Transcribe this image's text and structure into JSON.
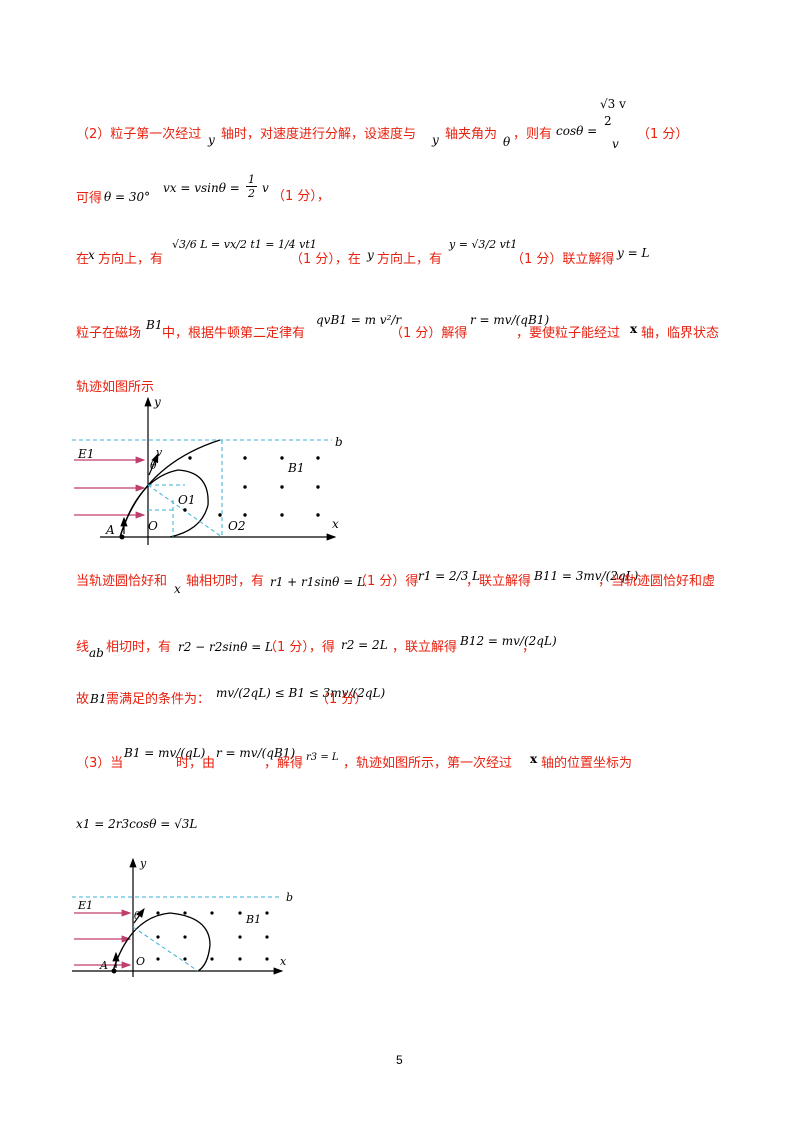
{
  "line1": {
    "text_a": "（2）粒子第一次经过",
    "text_b": "轴时，对速度进行分解，设速度与",
    "text_c": "轴夹角为",
    "text_d": "，则有",
    "text_e": "（1 分）",
    "var_y": "y",
    "var_theta": "θ",
    "cos_lhs": "cosθ =",
    "cos_num": "√3 v",
    "cos_num_den": "2",
    "cos_den": "v"
  },
  "line2": {
    "text_a": "可得",
    "theta_eq": "θ = 30°",
    "vx_eq": "vx = vsinθ = ",
    "half": "1",
    "two": "2",
    "v": "v",
    "text_b": "（1 分），"
  },
  "line3": {
    "text_a": "在",
    "x": "x",
    "text_b": "方向上，有",
    "eq1": "√3/6 L = vx/2 t1 = 1/4 vt1",
    "text_c": "（1 分），在",
    "y": "y",
    "text_d": "方向上，有",
    "eq2": "y = √3/2 vt1",
    "text_e": "（1 分）联立解得",
    "eq3": "y = L"
  },
  "line4": {
    "text_a": "粒子在磁场",
    "B1": "B1",
    "text_b": "中，根据牛顿第二定律有",
    "eq1": "qvB1 = m v²/r",
    "text_c": "（1 分）解得",
    "eq2": "r = mv/(qB1)",
    "text_d": "，要使粒子能经过",
    "x": "x",
    "text_e": "轴，临界状态"
  },
  "line5": {
    "text": "轨迹如图所示"
  },
  "figure1": {
    "label_y": "y",
    "label_x": "x",
    "label_b": "b",
    "label_E1": "E1",
    "label_v": "v",
    "label_theta": "θ",
    "label_B1": "B1",
    "label_O1": "O1",
    "label_O2": "O2",
    "label_O": "O",
    "label_A": "A"
  },
  "line6": {
    "text_a": "当轨迹圆恰好和",
    "x": "x",
    "text_b": "轴相切时，有",
    "eq1": "r1 + r1sinθ = L",
    "text_c": "（1 分）得",
    "eq2": "r1 = 2/3 L",
    "text_d": "，联立解得",
    "eq3": "B11 = 3mv/(2qL)",
    "text_e": "，当轨迹圆恰好和虚"
  },
  "line7": {
    "text_a": "线",
    "ab": "ab",
    "text_b": "相切时，有",
    "eq1": "r2 − r2sinθ = L",
    "text_c": "（1 分），得",
    "eq2": "r2 = 2L",
    "text_d": "，联立解得",
    "eq3": "B12 = mv/(2qL)",
    "text_e": "，"
  },
  "line8": {
    "text_a": "故",
    "B1": "B1",
    "text_b": "需满足的条件为：",
    "eq": "mv/(2qL) ≤ B1 ≤ 3mv/(2qL)",
    "text_c": "（1 分）"
  },
  "line9": {
    "text_a": "（3）当",
    "eq1": "B1 = mv/(qL)",
    "text_b": "时，由",
    "eq2": "r = mv/(qB1)",
    "text_c": "，解得",
    "eq3": "r3 = L",
    "text_d": "，轨迹如图所示，第一次经过",
    "x": "x",
    "text_e": "轴的位置坐标为"
  },
  "line10": {
    "eq": "x1 = 2r3cosθ = √3L"
  },
  "figure2": {
    "label_y": "y",
    "label_x": "x",
    "label_b": "b",
    "label_E1": "E1",
    "label_theta": "θ",
    "label_B1": "B1",
    "label_O": "O",
    "label_A": "A"
  },
  "page_number": "5"
}
